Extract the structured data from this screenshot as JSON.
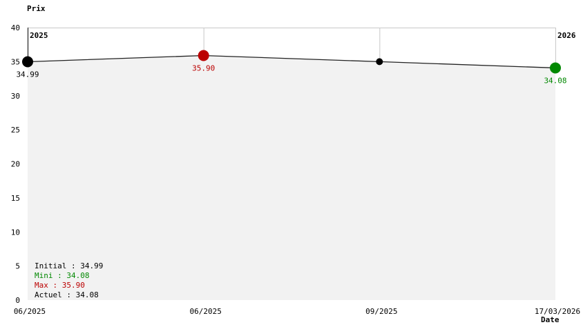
{
  "chart_data": {
    "type": "line",
    "ylabel": "Prix",
    "xlabel": "Date",
    "ylim": [
      0,
      40
    ],
    "yticks": [
      0,
      5,
      10,
      15,
      20,
      25,
      30,
      35,
      40
    ],
    "x_tick_labels": [
      "06/2025",
      "06/2025",
      "09/2025",
      "17/03/2026"
    ],
    "year_labels": {
      "start": "2025",
      "end": "2026"
    },
    "points": [
      {
        "value": 34.99,
        "label": "34.99",
        "color": "#000000",
        "marker": "large"
      },
      {
        "value": 35.9,
        "label": "35.90",
        "color": "#bb0000",
        "marker": "large"
      },
      {
        "value": 35.0,
        "label": "",
        "color": "#000000",
        "marker": "small"
      },
      {
        "value": 34.08,
        "label": "34.08",
        "color": "#008800",
        "marker": "large"
      }
    ],
    "grid": true,
    "fill_below_line": "#f2f2f2",
    "summary": [
      {
        "text": "Initial : 34.99",
        "color": "#000000"
      },
      {
        "text": "Mini : 34.08",
        "color": "#008800"
      },
      {
        "text": "Max : 35.90",
        "color": "#bb0000"
      },
      {
        "text": "Actuel : 34.08",
        "color": "#000000"
      }
    ]
  }
}
